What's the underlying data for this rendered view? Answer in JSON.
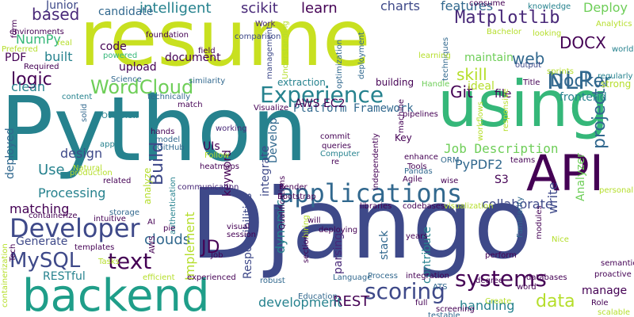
{
  "colors": {
    "background": "#ffffff",
    "palette": [
      "#440154",
      "#482878",
      "#3e4989",
      "#31688e",
      "#26828e",
      "#1f9e89",
      "#35b779",
      "#6ece58",
      "#b5de2b",
      "#fde725"
    ]
  },
  "words": [
    {
      "text": "resume",
      "color": "#c8e020"
    },
    {
      "text": "Python",
      "color": "#26828e"
    },
    {
      "text": "Django",
      "color": "#3e4989"
    },
    {
      "text": "using",
      "color": "#35b779"
    },
    {
      "text": "API",
      "color": "#440154"
    },
    {
      "text": "backend",
      "color": "#1f9e89"
    },
    {
      "text": "applications",
      "color": "#31688e"
    },
    {
      "text": "Developer",
      "color": "#3e4989"
    },
    {
      "text": "Experience",
      "color": "#26828e"
    },
    {
      "text": "Matplotlib",
      "color": "#482878"
    },
    {
      "text": "NLP",
      "color": "#31688e"
    },
    {
      "text": "Docker",
      "color": "#31688e"
    },
    {
      "text": "WordCloud",
      "color": "#6ece58"
    },
    {
      "text": "text",
      "color": "#440154"
    },
    {
      "text": "scoring",
      "color": "#3e4989"
    },
    {
      "text": "systems",
      "color": "#440154"
    },
    {
      "text": "data",
      "color": "#b5de2b"
    },
    {
      "text": "projects",
      "color": "#31688e"
    },
    {
      "text": "MySQL",
      "color": "#3e4989"
    },
    {
      "text": "Build",
      "color": "#3e4989"
    },
    {
      "text": "logic",
      "color": "#440154"
    },
    {
      "text": "based",
      "color": "#482878"
    },
    {
      "text": "intelligent",
      "color": "#26828e"
    },
    {
      "text": "scikit",
      "color": "#482878"
    },
    {
      "text": "learn",
      "color": "#440154"
    },
    {
      "text": "charts",
      "color": "#3e4989"
    },
    {
      "text": "features",
      "color": "#31688e"
    },
    {
      "text": "Deploy",
      "color": "#6ece58"
    },
    {
      "text": "skill",
      "color": "#b5de2b"
    },
    {
      "text": "Git",
      "color": "#440154"
    },
    {
      "text": "web",
      "color": "#31688e"
    },
    {
      "text": "DOCX",
      "color": "#440154"
    },
    {
      "text": "Junior",
      "color": "#3e4989"
    },
    {
      "text": "candidate",
      "color": "#31688e"
    },
    {
      "text": "NumPy",
      "color": "#35b779"
    },
    {
      "text": "PDF",
      "color": "#440154"
    },
    {
      "text": "built",
      "color": "#26828e"
    },
    {
      "text": "clean",
      "color": "#26828e"
    },
    {
      "text": "Use",
      "color": "#26828e"
    },
    {
      "text": "Processing",
      "color": "#26828e"
    },
    {
      "text": "matching",
      "color": "#440154"
    },
    {
      "text": "Generate",
      "color": "#3e4989"
    },
    {
      "text": "RESTful",
      "color": "#26828e"
    },
    {
      "text": "REST",
      "color": "#440154"
    },
    {
      "text": "Platform Framework",
      "color": "#31688e"
    },
    {
      "text": "Job Description",
      "color": "#6ece58"
    },
    {
      "text": "PyPDF2",
      "color": "#31688e"
    },
    {
      "text": "S3",
      "color": "#440154"
    },
    {
      "text": "AWS EC2",
      "color": "#440154"
    },
    {
      "text": "upload",
      "color": "#440154"
    },
    {
      "text": "document",
      "color": "#440154"
    },
    {
      "text": "code",
      "color": "#440154"
    },
    {
      "text": "maintain",
      "color": "#6ece58"
    },
    {
      "text": "ideal",
      "color": "#b5de2b"
    },
    {
      "text": "frontend",
      "color": "#26828e"
    },
    {
      "text": "file",
      "color": "#440154"
    },
    {
      "text": "collaborate",
      "color": "#3e4989"
    },
    {
      "text": "handling",
      "color": "#26828e"
    },
    {
      "text": "development",
      "color": "#26828e"
    },
    {
      "text": "parsing",
      "color": "#482878"
    },
    {
      "text": "write",
      "color": "#3e4989"
    },
    {
      "text": "Analyzer",
      "color": "#6ece58"
    },
    {
      "text": "manage",
      "color": "#440154"
    },
    {
      "text": "contribute",
      "color": "#26828e"
    },
    {
      "text": "stack",
      "color": "#31688e"
    },
    {
      "text": "JD",
      "color": "#440154"
    },
    {
      "text": "clouds",
      "color": "#31688e"
    },
    {
      "text": "Implement",
      "color": "#b5de2b"
    },
    {
      "text": "dynamic",
      "color": "#26828e"
    },
    {
      "text": "Responsibilities",
      "color": "#3e4989"
    },
    {
      "text": "integrate",
      "color": "#3e4989"
    },
    {
      "text": "keyword",
      "color": "#440154"
    },
    {
      "text": "UIs",
      "color": "#440154"
    },
    {
      "text": "design",
      "color": "#3e4989"
    },
    {
      "text": "Develop",
      "color": "#31688e"
    },
    {
      "text": "deployed",
      "color": "#31688e"
    },
    {
      "text": "extraction",
      "color": "#26828e"
    },
    {
      "text": "building",
      "color": "#440154"
    },
    {
      "text": "analyze",
      "color": "#b5de2b"
    },
    {
      "text": "Key",
      "color": "#440154"
    },
    {
      "text": "consume",
      "color": "#440154"
    },
    {
      "text": "knowledge",
      "color": "#26828e"
    },
    {
      "text": "Analytics",
      "color": "#b5de2b"
    },
    {
      "text": "world",
      "color": "#26828e"
    },
    {
      "text": "output",
      "color": "#3e4989"
    },
    {
      "text": "regularly",
      "color": "#26828e"
    },
    {
      "text": "strong",
      "color": "#b5de2b"
    },
    {
      "text": "Title",
      "color": "#440154"
    },
    {
      "text": "Handle",
      "color": "#6ece58"
    },
    {
      "text": "sprints",
      "color": "#b5de2b"
    },
    {
      "text": "looking",
      "color": "#b5de2b"
    },
    {
      "text": "Bachelor",
      "color": "#b5de2b"
    },
    {
      "text": "techniques",
      "color": "#31688e"
    },
    {
      "text": "learning",
      "color": "#b5de2b"
    },
    {
      "text": "foundation",
      "color": "#440154"
    },
    {
      "text": "comparison",
      "color": "#3e4989"
    },
    {
      "text": "field",
      "color": "#440154"
    },
    {
      "text": "powered",
      "color": "#35b779"
    },
    {
      "text": "Science",
      "color": "#31688e"
    },
    {
      "text": "similarity",
      "color": "#31688e"
    },
    {
      "text": "real",
      "color": "#b5de2b"
    },
    {
      "text": "form",
      "color": "#440154"
    },
    {
      "text": "environments",
      "color": "#440154"
    },
    {
      "text": "Preferred",
      "color": "#b5de2b"
    },
    {
      "text": "Required",
      "color": "#440154"
    },
    {
      "text": "Work",
      "color": "#482878"
    },
    {
      "text": "management",
      "color": "#3e4989"
    },
    {
      "text": "Understanding",
      "color": "#b5de2b"
    },
    {
      "text": "optimization",
      "color": "#31688e"
    },
    {
      "text": "deployment",
      "color": "#31688e"
    },
    {
      "text": "content",
      "color": "#26828e"
    },
    {
      "text": "technically",
      "color": "#31688e"
    },
    {
      "text": "match",
      "color": "#440154"
    },
    {
      "text": "Overview",
      "color": "#26828e"
    },
    {
      "text": "solid",
      "color": "#31688e"
    },
    {
      "text": "Visualize",
      "color": "#440154"
    },
    {
      "text": "pipelines",
      "color": "#440154"
    },
    {
      "text": "responsive",
      "color": "#b5de2b"
    },
    {
      "text": "workflows",
      "color": "#b5de2b"
    },
    {
      "text": "teams",
      "color": "#440154"
    },
    {
      "text": "personal",
      "color": "#b5de2b"
    },
    {
      "text": "apps",
      "color": "#26828e"
    },
    {
      "text": "hands",
      "color": "#440154"
    },
    {
      "text": "GitHub",
      "color": "#31688e"
    },
    {
      "text": "working",
      "color": "#482878"
    },
    {
      "text": "model",
      "color": "#31688e"
    },
    {
      "text": "Follow",
      "color": "#b5de2b"
    },
    {
      "text": "heatmaps",
      "color": "#440154"
    },
    {
      "text": "commit",
      "color": "#440154"
    },
    {
      "text": "queries",
      "color": "#440154"
    },
    {
      "text": "Computer",
      "color": "#26828e"
    },
    {
      "text": "re",
      "color": "#440154"
    },
    {
      "text": "machine",
      "color": "#440154"
    },
    {
      "text": "enhance",
      "color": "#440154"
    },
    {
      "text": "Tools",
      "color": "#440154"
    },
    {
      "text": "Pandas",
      "color": "#31688e"
    },
    {
      "text": "Agile",
      "color": "#440154"
    },
    {
      "text": "independently",
      "color": "#440154"
    },
    {
      "text": "ORM",
      "color": "#31688e"
    },
    {
      "text": "wise",
      "color": "#440154"
    },
    {
      "text": "Natural",
      "color": "#b5de2b"
    },
    {
      "text": "production",
      "color": "#b5de2b"
    },
    {
      "text": "related",
      "color": "#440154"
    },
    {
      "text": "communication",
      "color": "#482878"
    },
    {
      "text": "Bootstrap",
      "color": "#440154"
    },
    {
      "text": "Render",
      "color": "#440154"
    },
    {
      "text": "libraries",
      "color": "#440154"
    },
    {
      "text": "codebases",
      "color": "#440154"
    },
    {
      "text": "visualization",
      "color": "#b5de2b"
    },
    {
      "text": "storage",
      "color": "#31688e"
    },
    {
      "text": "containerize",
      "color": "#440154"
    },
    {
      "text": "intuitive",
      "color": "#440154"
    },
    {
      "text": "AI",
      "color": "#440154"
    },
    {
      "text": "authentication",
      "color": "#26828e"
    },
    {
      "text": "pie",
      "color": "#440154"
    },
    {
      "text": "visual",
      "color": "#440154"
    },
    {
      "text": "session",
      "color": "#440154"
    },
    {
      "text": "Qualifications",
      "color": "#440154"
    },
    {
      "text": "will",
      "color": "#440154"
    },
    {
      "text": "deploying",
      "color": "#440154"
    },
    {
      "text": "hiring",
      "color": "#b5de2b"
    },
    {
      "text": "years",
      "color": "#440154"
    },
    {
      "text": "perform",
      "color": "#440154"
    },
    {
      "text": "Familiarity",
      "color": "#31688e"
    },
    {
      "text": "modules",
      "color": "#440154"
    },
    {
      "text": "Nice",
      "color": "#b5de2b"
    },
    {
      "text": "semantic",
      "color": "#440154"
    },
    {
      "text": "proactive",
      "color": "#440154"
    },
    {
      "text": "AWS",
      "color": "#440154"
    },
    {
      "text": "templates",
      "color": "#440154"
    },
    {
      "text": "Tasks",
      "color": "#b5de2b"
    },
    {
      "text": "Tech",
      "color": "#440154"
    },
    {
      "text": "Job",
      "color": "#440154"
    },
    {
      "text": "efficient",
      "color": "#b5de2b"
    },
    {
      "text": "experienced",
      "color": "#440154"
    },
    {
      "text": "robust",
      "color": "#31688e"
    },
    {
      "text": "section",
      "color": "#440154"
    },
    {
      "text": "Language",
      "color": "#31688e"
    },
    {
      "text": "Process",
      "color": "#31688e"
    },
    {
      "text": "integration",
      "color": "#440154"
    },
    {
      "text": "degree",
      "color": "#440154"
    },
    {
      "text": "databases",
      "color": "#440154"
    },
    {
      "text": "Education",
      "color": "#31688e"
    },
    {
      "text": "ATS",
      "color": "#31688e"
    },
    {
      "text": "full",
      "color": "#440154"
    },
    {
      "text": "screening",
      "color": "#440154"
    },
    {
      "text": "testable",
      "color": "#31688e"
    },
    {
      "text": "Create",
      "color": "#b5de2b"
    },
    {
      "text": "word",
      "color": "#440154"
    },
    {
      "text": "Role",
      "color": "#440154"
    },
    {
      "text": "scalable",
      "color": "#b5de2b"
    },
    {
      "text": "containerization",
      "color": "#b5de2b"
    }
  ]
}
